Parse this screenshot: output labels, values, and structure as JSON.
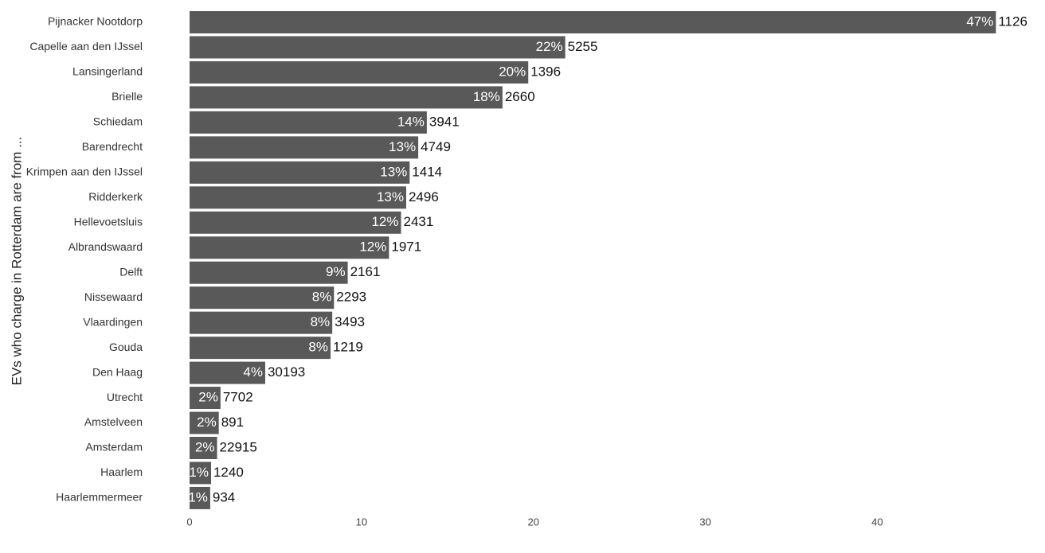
{
  "chart_data": {
    "type": "bar",
    "orientation": "horizontal",
    "y_label": "EVs who charge in Rotterdam are from ...",
    "categories": [
      "Pijnacker Nootdorp",
      "Capelle aan den IJssel",
      "Lansingerland",
      "Brielle",
      "Schiedam",
      "Barendrecht",
      "Krimpen aan den IJssel",
      "Ridderkerk",
      "Hellevoetsluis",
      "Albrandswaard",
      "Delft",
      "Nissewaard",
      "Vlaardingen",
      "Gouda",
      "Den Haag",
      "Utrecht",
      "Amstelveen",
      "Amsterdam",
      "Haarlem",
      "Haarlemmermeer"
    ],
    "values": [
      46.9,
      21.85,
      19.7,
      18.2,
      13.8,
      13.3,
      12.8,
      12.6,
      12.3,
      11.6,
      9.2,
      8.4,
      8.3,
      8.2,
      4.4,
      1.8,
      1.7,
      1.6,
      1.25,
      1.2
    ],
    "value_labels": [
      "47%",
      "22%",
      "20%",
      "18%",
      "14%",
      "13%",
      "13%",
      "13%",
      "12%",
      "12%",
      "9%",
      "8%",
      "8%",
      "8%",
      "4%",
      "2%",
      "2%",
      "2%",
      "1%",
      "1%"
    ],
    "counts": [
      1126,
      5255,
      1396,
      2660,
      3941,
      4749,
      1414,
      2496,
      2431,
      1971,
      2161,
      2293,
      3493,
      1219,
      30193,
      7702,
      891,
      22915,
      1240,
      934
    ],
    "color": "#595959",
    "xlim": [
      0,
      49.2
    ],
    "xticks": [
      0,
      10,
      20,
      30,
      40
    ],
    "grid": false
  }
}
